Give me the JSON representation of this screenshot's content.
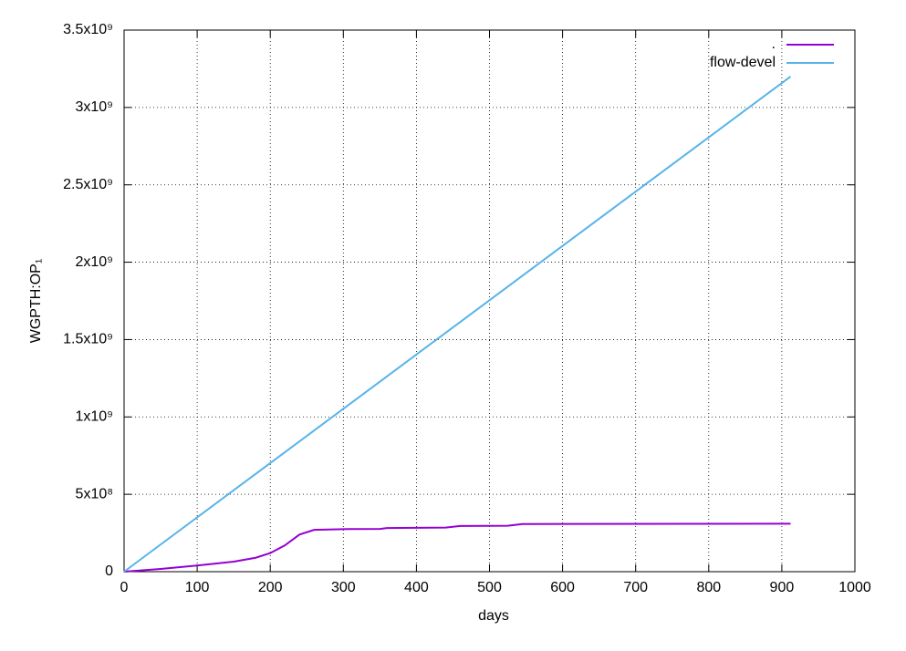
{
  "chart_data": {
    "type": "line",
    "xlabel": "days",
    "ylabel": "WGPTH:OP₁",
    "xlim": [
      0,
      1000
    ],
    "xticks": [
      0,
      100,
      200,
      300,
      400,
      500,
      600,
      700,
      800,
      900,
      1000
    ],
    "ylim": [
      0,
      3500000000
    ],
    "yticks": [
      0,
      {
        "value": 500000000,
        "label": "5x10⁸"
      },
      {
        "value": 1000000000,
        "label": "1x10⁹"
      },
      {
        "value": 1500000000,
        "label": "1.5x10⁹"
      },
      {
        "value": 2000000000,
        "label": "2x10⁹"
      },
      {
        "value": 2500000000,
        "label": "2.5x10⁹"
      },
      {
        "value": 3000000000,
        "label": "3x10⁹"
      },
      {
        "value": 3500000000,
        "label": "3.5x10⁹"
      }
    ],
    "grid": true,
    "legend": "top-right",
    "series": [
      {
        "name": ".",
        "color": "#9400d3",
        "x": [
          0,
          50,
          100,
          150,
          180,
          200,
          220,
          240,
          260,
          300,
          350,
          360,
          440,
          460,
          525,
          545,
          912
        ],
        "values": [
          0,
          18000000,
          40000000,
          65000000,
          90000000,
          120000000,
          170000000,
          240000000,
          270000000,
          275000000,
          276000000,
          282000000,
          285000000,
          295000000,
          297000000,
          308000000,
          310000000
        ]
      },
      {
        "name": "flow-devel",
        "color": "#56b4e9",
        "x": [
          0,
          912
        ],
        "values": [
          0,
          3200000000
        ]
      }
    ]
  }
}
